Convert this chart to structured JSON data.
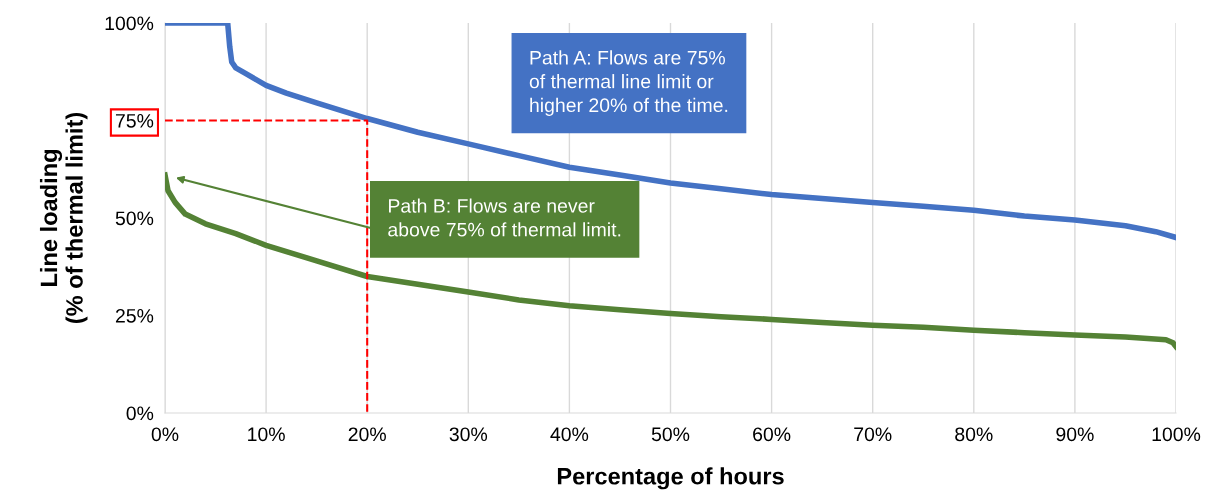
{
  "chart_data": {
    "type": "line",
    "xlabel": "Percentage of hours",
    "ylabel": "Line loading\n(% of thermal limit)",
    "xlim": [
      0,
      100
    ],
    "ylim": [
      0,
      100
    ],
    "xticks": [
      {
        "value": 0,
        "label": "0%"
      },
      {
        "value": 10,
        "label": "10%"
      },
      {
        "value": 20,
        "label": "20%"
      },
      {
        "value": 30,
        "label": "30%"
      },
      {
        "value": 40,
        "label": "40%"
      },
      {
        "value": 50,
        "label": "50%"
      },
      {
        "value": 60,
        "label": "60%"
      },
      {
        "value": 70,
        "label": "70%"
      },
      {
        "value": 80,
        "label": "80%"
      },
      {
        "value": 90,
        "label": "90%"
      },
      {
        "value": 100,
        "label": "100%"
      }
    ],
    "yticks": [
      {
        "value": 0,
        "label": "0%"
      },
      {
        "value": 25,
        "label": "25%"
      },
      {
        "value": 50,
        "label": "50%"
      },
      {
        "value": 75,
        "label": "75%"
      },
      {
        "value": 100,
        "label": "100%"
      }
    ],
    "grid": "x",
    "line_style": "solid",
    "marker": "none",
    "series": [
      {
        "color": "#4472c4",
        "x": [
          0,
          2,
          4,
          6.2,
          6.4,
          6.6,
          7,
          8,
          10,
          12,
          15,
          20,
          25,
          30,
          35,
          40,
          45,
          50,
          55,
          60,
          65,
          70,
          75,
          80,
          85,
          90,
          95,
          98,
          100
        ],
        "values": [
          100,
          100,
          100,
          100,
          94,
          90,
          88.5,
          87,
          84,
          82,
          79.5,
          75.5,
          72,
          69,
          66,
          63,
          61,
          59,
          57.5,
          56,
          55,
          54,
          53,
          52,
          50.5,
          49.5,
          48,
          46.5,
          45
        ]
      },
      {
        "color": "#548235",
        "x": [
          0,
          0.3,
          1,
          2,
          4,
          7,
          10,
          15,
          20,
          25,
          30,
          35,
          40,
          45,
          50,
          55,
          60,
          65,
          70,
          75,
          80,
          85,
          90,
          95,
          99,
          99.7,
          100
        ],
        "values": [
          61,
          57,
          54,
          51,
          48.5,
          46,
          43,
          39,
          35,
          33,
          31,
          29,
          27.5,
          26.5,
          25.5,
          24.7,
          24,
          23.2,
          22.5,
          22,
          21.2,
          20.6,
          20,
          19.5,
          18.8,
          18,
          17
        ]
      },
      {
        "color": "#ff0000",
        "x": [
          0,
          20,
          20
        ],
        "values": [
          75,
          75,
          0
        ],
        "line_style": "dashed"
      }
    ],
    "annotations": [
      "Path A: Flows are 75%\nof thermal line limit or\nhigher 20% of the time.",
      "Path B: Flows are never\nabove 75% of thermal limit."
    ]
  }
}
